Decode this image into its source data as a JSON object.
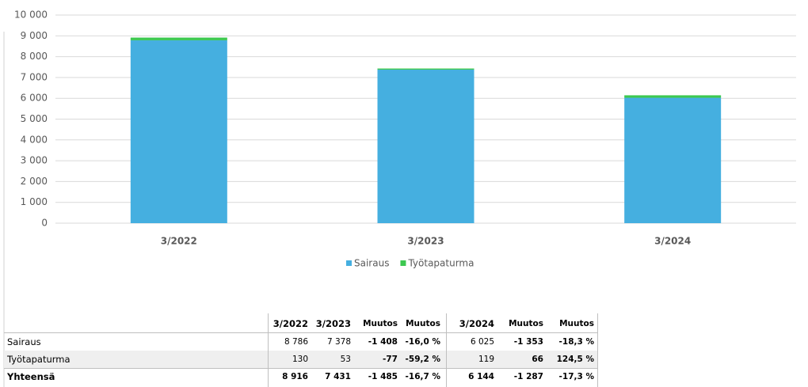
{
  "chart_data": {
    "type": "bar",
    "stacked": true,
    "categories": [
      "3/2022",
      "3/2023",
      "3/2024"
    ],
    "series": [
      {
        "name": "Sairaus",
        "color": "#45afe0",
        "values": [
          8786,
          7378,
          6025
        ]
      },
      {
        "name": "Työtapaturma",
        "color": "#3cc850",
        "values": [
          130,
          53,
          119
        ]
      }
    ],
    "ylim": [
      0,
      10000
    ],
    "yticks": [
      0,
      {
        "value": 1000,
        "label": "1 000"
      },
      {
        "value": 2000,
        "label": "2 000"
      },
      {
        "value": 3000,
        "label": "3 000"
      },
      {
        "value": 4000,
        "label": "4 000"
      },
      {
        "value": 5000,
        "label": "5 000"
      },
      {
        "value": 6000,
        "label": "6 000"
      },
      {
        "value": 7000,
        "label": "7 000"
      },
      {
        "value": 8000,
        "label": "8 000"
      },
      {
        "value": 9000,
        "label": "9 000"
      },
      {
        "value": 10000,
        "label": "10 000"
      }
    ],
    "grid": true,
    "legend": "bottom"
  },
  "table": {
    "columns": [
      "3/2022",
      "3/2023",
      "Muutos",
      "Muutos",
      "3/2024",
      "Muutos",
      "Muutos"
    ],
    "rows": [
      [
        "Sairaus",
        "8 786",
        "7 378",
        "-1 408",
        "-16,0 %",
        "6 025",
        "-1 353",
        "-18,3 %"
      ],
      [
        "Työtapaturma",
        "130",
        "53",
        "-77",
        "-59,2 %",
        "119",
        "66",
        "124,5 %"
      ],
      [
        "Yhteensä",
        "8 916",
        "7 431",
        "-1 485",
        "-16,7 %",
        "6 144",
        "-1 287",
        "-17,3 %"
      ]
    ]
  }
}
